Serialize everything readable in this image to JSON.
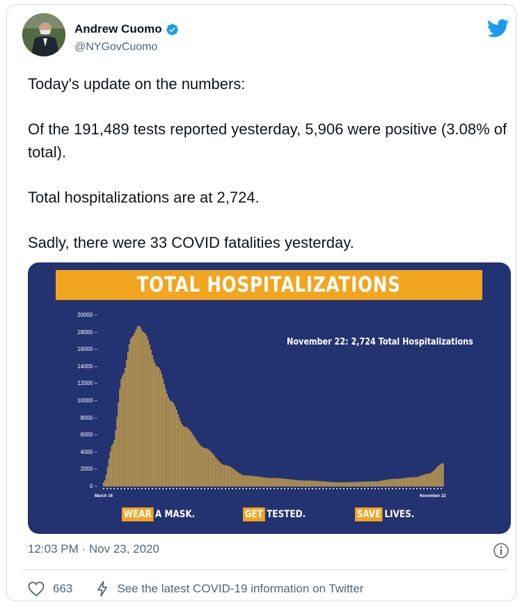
{
  "user": {
    "name": "Andrew Cuomo",
    "handle": "@NYGovCuomo",
    "verified": true
  },
  "tweet": {
    "paragraphs": [
      "Today's update on the numbers:",
      "Of the 191,489 tests reported yesterday, 5,906 were positive (3.08% of total).",
      "Total hospitalizations are at 2,724.",
      "Sadly, there were 33 COVID fatalities yesterday."
    ],
    "timestamp": "12:03 PM · Nov 23, 2020"
  },
  "media": {
    "banner": "TOTAL HOSPITALIZATIONS",
    "annotation": "November 22: 2,724 Total Hospitalizations",
    "slogans": [
      {
        "highlight": "WEAR",
        "rest": "A MASK."
      },
      {
        "highlight": "GET",
        "rest": "TESTED."
      },
      {
        "highlight": "SAVE",
        "rest": "LIVES."
      }
    ],
    "colors": {
      "background": "#233270",
      "bars": "#c7a14a",
      "banner": "#f2a51f",
      "text": "#ffffff"
    }
  },
  "chart_data": {
    "type": "bar",
    "title": "TOTAL HOSPITALIZATIONS",
    "x_start_label": "March 16",
    "x_end_label": "November 22",
    "ylim": [
      0,
      20000
    ],
    "yticks": [
      "20000",
      "18000",
      "16000",
      "14000",
      "12000",
      "10000",
      "8000",
      "6000",
      "4000",
      "2000",
      "0"
    ],
    "keypoints": [
      {
        "day": 0,
        "value": 500
      },
      {
        "day": 7,
        "value": 5000
      },
      {
        "day": 14,
        "value": 13000
      },
      {
        "day": 21,
        "value": 17500
      },
      {
        "day": 26,
        "value": 18800
      },
      {
        "day": 30,
        "value": 18000
      },
      {
        "day": 40,
        "value": 14000
      },
      {
        "day": 50,
        "value": 10000
      },
      {
        "day": 60,
        "value": 7000
      },
      {
        "day": 75,
        "value": 4500
      },
      {
        "day": 90,
        "value": 2500
      },
      {
        "day": 105,
        "value": 1300
      },
      {
        "day": 125,
        "value": 1000
      },
      {
        "day": 150,
        "value": 700
      },
      {
        "day": 175,
        "value": 500
      },
      {
        "day": 200,
        "value": 600
      },
      {
        "day": 215,
        "value": 900
      },
      {
        "day": 230,
        "value": 1100
      },
      {
        "day": 240,
        "value": 1500
      },
      {
        "day": 251,
        "value": 2724
      }
    ],
    "last_value": 2724
  },
  "actions": {
    "like_count": "663",
    "info_link": "See the latest COVID-19 information on Twitter"
  }
}
